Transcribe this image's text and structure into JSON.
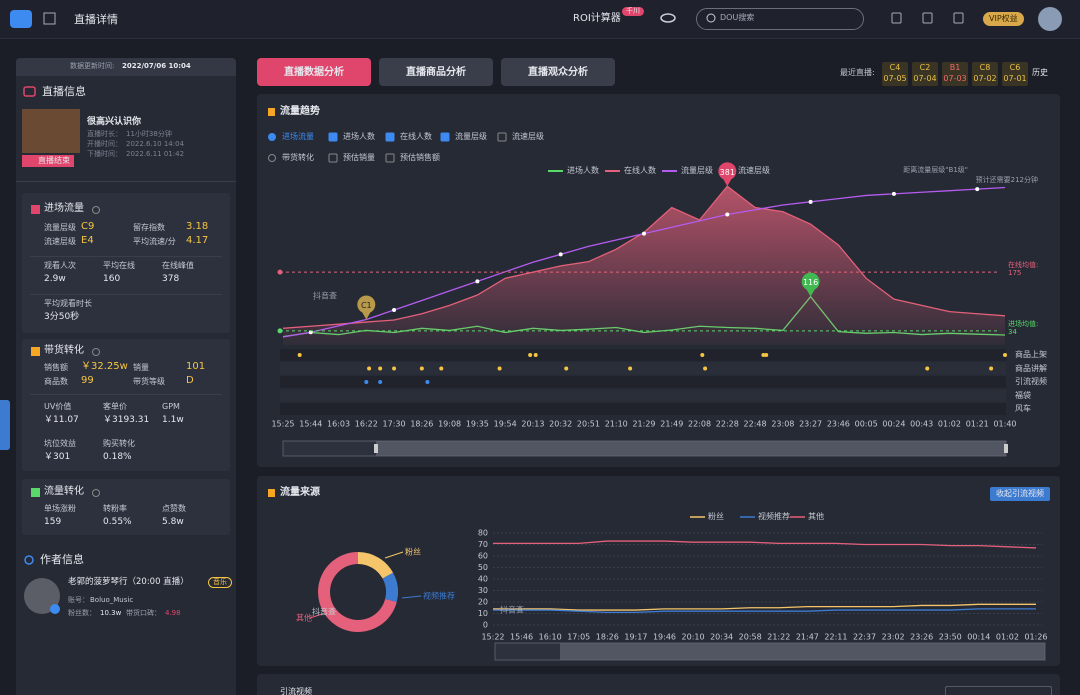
{
  "header": {
    "title": "直播详情",
    "roi": "ROI计算器",
    "roi_badge": "千川",
    "search_placeholder": "DOU搜索",
    "vip": "VIP权益"
  },
  "watermark": "抖音查",
  "sidebar": {
    "update_label": "数据更新时间:",
    "update_time": "2022/07/06 10:04",
    "live": {
      "heading": "直播信息",
      "name": "很高兴认识你",
      "rows": [
        [
          "直播时长：",
          "11小时38分钟"
        ],
        [
          "开播时间：",
          "2022.6.10 14:04"
        ],
        [
          "下播时间：",
          "2022.6.11 01:42"
        ]
      ],
      "status": "直播结束"
    },
    "traffic": {
      "heading": "进场流量",
      "pairs": [
        [
          "流量层级",
          "C9"
        ],
        [
          "留存指数",
          "3.18"
        ],
        [
          "流速层级",
          "E4"
        ],
        [
          "平均流速/分",
          "4.17"
        ]
      ],
      "stats": [
        [
          "观看人次",
          "2.9w"
        ],
        [
          "平均在线",
          "160"
        ],
        [
          "在线峰值",
          "378"
        ],
        [
          "平均观看时长",
          "3分50秒"
        ]
      ]
    },
    "sales": {
      "heading": "带货转化",
      "pairs": [
        [
          "销售额",
          "￥32.25w"
        ],
        [
          "销量",
          "101"
        ],
        [
          "商品数",
          "99"
        ],
        [
          "带货等级",
          "D"
        ]
      ],
      "stats": [
        [
          "UV价值",
          "￥11.07"
        ],
        [
          "客单价",
          "￥3193.31"
        ],
        [
          "GPM",
          "1.1w"
        ],
        [
          "坑位效益",
          "￥301"
        ],
        [
          "购买转化",
          "0.18%"
        ]
      ]
    },
    "conversion": {
      "heading": "流量转化",
      "stats": [
        [
          "单场涨粉",
          "159"
        ],
        [
          "转粉率",
          "0.55%"
        ],
        [
          "点赞数",
          "5.8w"
        ]
      ]
    },
    "author": {
      "heading": "作者信息",
      "name": "老郭的菠萝琴行（20:00 直播）",
      "tag": "音乐",
      "account_label": "账号：",
      "account": "Boluo_Music",
      "fans_label": "粉丝数：",
      "fans": "10.3w",
      "rep_label": "带货口碑：",
      "rep": "4.98"
    }
  },
  "tabs": [
    "直播数据分析",
    "直播商品分析",
    "直播观众分析"
  ],
  "recent": {
    "label": "最近直播:",
    "items": [
      {
        "level": "C4",
        "date": "07-05",
        "color": "#e8c14a"
      },
      {
        "level": "C2",
        "date": "07-04",
        "color": "#e8c14a"
      },
      {
        "level": "B1",
        "date": "07-03",
        "color": "#f06a6a"
      },
      {
        "level": "C8",
        "date": "07-02",
        "color": "#e8c14a"
      },
      {
        "level": "C6",
        "date": "07-01",
        "color": "#e8c14a"
      }
    ],
    "history": "历史"
  },
  "bottom": {
    "title": "引流视频"
  },
  "chart_data": [
    {
      "type": "line",
      "title": "流量趋势",
      "options": [
        {
          "label": "进场流量",
          "kind": "radio",
          "checked": true
        },
        {
          "label": "进场人数",
          "kind": "check",
          "checked": true
        },
        {
          "label": "在线人数",
          "kind": "check",
          "checked": true
        },
        {
          "label": "流量层级",
          "kind": "check",
          "checked": true
        },
        {
          "label": "流速层级",
          "kind": "check",
          "checked": false
        }
      ],
      "options2": [
        {
          "label": "带货转化",
          "kind": "radio",
          "checked": false
        },
        {
          "label": "预估销量",
          "kind": "check",
          "checked": false
        },
        {
          "label": "预估销售额",
          "kind": "check",
          "checked": false
        }
      ],
      "note": [
        "距离流量层级\"B1级\"",
        "预计还需要212分钟"
      ],
      "categories": [
        "15:25",
        "15:44",
        "16:03",
        "16:22",
        "17:30",
        "18:26",
        "19:08",
        "19:35",
        "19:54",
        "20:13",
        "20:32",
        "20:51",
        "21:10",
        "21:29",
        "21:49",
        "22:08",
        "22:28",
        "22:48",
        "23:08",
        "23:27",
        "23:46",
        "00:05",
        "00:24",
        "00:43",
        "01:02",
        "01:21",
        "01:40"
      ],
      "ylim": [
        0,
        420
      ],
      "y2lim": [
        0,
        110
      ],
      "series": [
        {
          "name": "进场人数",
          "color": "#5ad86a",
          "values": [
            20,
            30,
            25,
            35,
            30,
            40,
            35,
            45,
            30,
            40,
            35,
            38,
            42,
            30,
            36,
            45,
            42,
            40,
            35,
            116,
            32,
            28,
            30,
            25,
            28,
            26,
            24
          ]
        },
        {
          "name": "在线人数",
          "color": "#e5607a",
          "values": [
            40,
            45,
            50,
            55,
            60,
            75,
            95,
            120,
            160,
            175,
            190,
            200,
            230,
            270,
            330,
            300,
            381,
            330,
            320,
            290,
            240,
            160,
            110,
            95,
            80,
            75,
            70
          ]
        },
        {
          "name": "流量层级",
          "color": "#b45cf0",
          "axis": "y2",
          "values": [
            5,
            8,
            12,
            16,
            22,
            28,
            34,
            40,
            46,
            52,
            57,
            62,
            66,
            70,
            74,
            78,
            82,
            85,
            88,
            90,
            92,
            94,
            95,
            96,
            97,
            98,
            99
          ]
        },
        {
          "name": "流速层级",
          "color": "#8a8f9c",
          "values": [
            null,
            null,
            null,
            null,
            null,
            null,
            null,
            null,
            null,
            null,
            null,
            null,
            null,
            null,
            null,
            null,
            null,
            null,
            null,
            null,
            null,
            null,
            null,
            null,
            null,
            null,
            null
          ]
        }
      ],
      "peak_label": "381",
      "spike_label": "116",
      "level_marker": {
        "label": "C1",
        "index": 3
      },
      "averages": [
        {
          "label": "在线均值:",
          "value": 175,
          "color": "#e5607a"
        },
        {
          "label": "进场均值:",
          "value": 34,
          "color": "#5ad86a"
        }
      ],
      "events": [
        {
          "name": "商品上架",
          "color": "#f5c542",
          "at": [
            0.6,
            8.9,
            9.1,
            15.1,
            17.3,
            17.4,
            26
          ]
        },
        {
          "name": "商品讲解",
          "color": "#f5c542",
          "at": [
            3.1,
            3.5,
            4.0,
            5.0,
            5.7,
            7.8,
            10.2,
            12.5,
            15.2,
            23.2,
            25.5
          ]
        },
        {
          "name": "引流视频",
          "color": "#3d8bf0",
          "at": [
            3.0,
            3.5,
            5.2
          ]
        },
        {
          "name": "福袋",
          "color": "#f5c542",
          "at": []
        },
        {
          "name": "风车",
          "color": "#f5c542",
          "at": []
        }
      ]
    },
    {
      "type": "line",
      "title": "流量来源",
      "button": "收起引流视频",
      "categories": [
        "15:22",
        "15:46",
        "16:10",
        "17:05",
        "18:26",
        "19:17",
        "19:46",
        "20:10",
        "20:34",
        "20:58",
        "21:22",
        "21:47",
        "22:11",
        "22:37",
        "23:02",
        "23:26",
        "23:50",
        "00:14",
        "01:02",
        "01:26"
      ],
      "ylim": [
        0,
        80
      ],
      "yticks": [
        0,
        10,
        20,
        30,
        40,
        50,
        60,
        70,
        80
      ],
      "grid": true,
      "series": [
        {
          "name": "粉丝",
          "color": "#f5c56b",
          "values": [
            14,
            14,
            14,
            13,
            13,
            13,
            14,
            14,
            14,
            15,
            15,
            16,
            16,
            16,
            16,
            17,
            17,
            18,
            18,
            18
          ]
        },
        {
          "name": "视频推荐",
          "color": "#3d7bd1",
          "values": [
            13,
            13,
            13,
            12,
            11,
            11,
            12,
            12,
            12,
            12,
            12,
            12,
            13,
            13,
            13,
            13,
            13,
            14,
            14,
            14
          ]
        },
        {
          "name": "其他",
          "color": "#e5607a",
          "values": [
            71,
            71,
            71,
            71,
            73,
            73,
            73,
            72,
            72,
            72,
            71,
            71,
            71,
            70,
            70,
            70,
            69,
            69,
            68,
            67
          ]
        }
      ]
    },
    {
      "type": "pie",
      "categories": [
        "粉丝",
        "视频推荐",
        "其他"
      ],
      "values": [
        17,
        12,
        71
      ],
      "colors": [
        "#f5c56b",
        "#3d7bd1",
        "#e5607a"
      ]
    }
  ]
}
